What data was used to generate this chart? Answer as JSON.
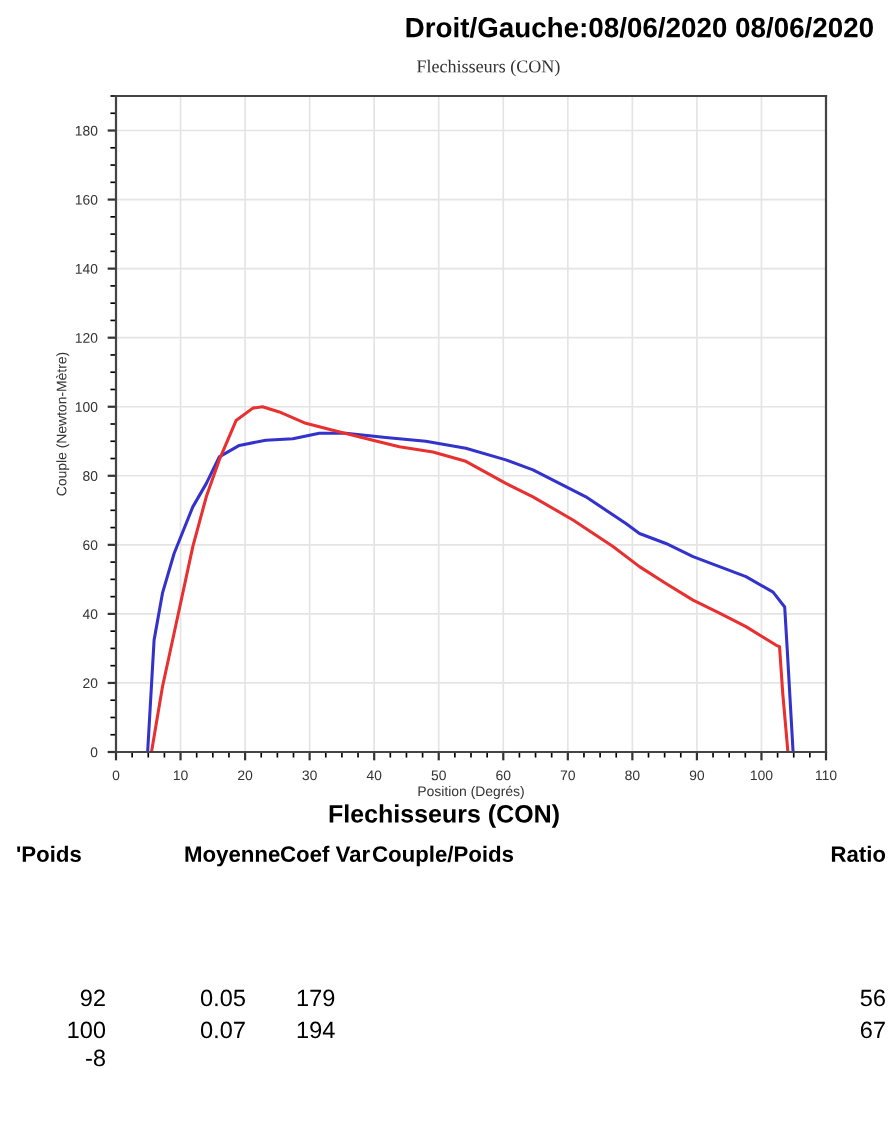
{
  "chart_data": {
    "type": "line",
    "title": "Droit/Gauche:08/06/2020 08/06/2020",
    "subtitle": "Flechisseurs (CON)",
    "xlabel": "Position (Degrés)",
    "ylabel": "Couple (Newton-Mètre)",
    "xlim": [
      0,
      110
    ],
    "xticks": [
      0,
      10,
      20,
      30,
      40,
      50,
      60,
      70,
      80,
      90,
      100,
      110
    ],
    "ylim": [
      0,
      190
    ],
    "yticks": [
      0,
      20,
      40,
      60,
      80,
      100,
      120,
      140,
      160,
      180
    ],
    "grid": true,
    "legend": false,
    "marker": "none",
    "line_style": "solid",
    "series": [
      {
        "color": "#3333cc",
        "x": [
          4.9,
          5.9,
          7.2,
          9,
          11.9,
          14,
          16,
          19.1,
          23.2,
          27.4,
          31.5,
          35.6,
          41.8,
          48,
          54.2,
          60.4,
          64.6,
          68.7,
          72.8,
          79,
          81.1,
          85.2,
          89.4,
          93.5,
          97.6,
          101.8,
          103.6,
          104,
          104.9
        ],
        "values": [
          0,
          32.4,
          46,
          57.5,
          71,
          77.8,
          85.5,
          88.8,
          90.3,
          90.7,
          92.3,
          92.3,
          91.1,
          90,
          88,
          84.6,
          81.7,
          77.8,
          73.9,
          66.2,
          63.3,
          60.4,
          56.6,
          53.7,
          50.8,
          46.3,
          42,
          29.5,
          0
        ]
      },
      {
        "color": "#e83030",
        "x": [
          5.5,
          7.2,
          9,
          11.9,
          14,
          16,
          18.6,
          21.2,
          22.7,
          25.3,
          29.4,
          33.6,
          39.8,
          43.9,
          49.1,
          54.2,
          60.4,
          64.6,
          70.8,
          77,
          81.1,
          85.2,
          89.4,
          93.5,
          97.6,
          102.3,
          102.8,
          103.3,
          104.1
        ],
        "values": [
          0,
          18.9,
          34.4,
          59.5,
          74,
          84.6,
          96,
          99.6,
          100,
          98.5,
          95.2,
          93.2,
          90.3,
          88.4,
          86.9,
          84.2,
          77.8,
          73.9,
          67.2,
          59.5,
          53.7,
          48.8,
          44,
          40.2,
          36.3,
          30.9,
          30.5,
          17,
          0
        ]
      }
    ],
    "annotations": [
      "Flechisseurs (CON)",
      "'Poids",
      "Moyenne",
      "Coef Var",
      "Couple/Poids",
      "Ratio",
      "92",
      "0.05",
      "179",
      "56",
      "100",
      "0.07",
      "194",
      "67",
      "-8"
    ]
  }
}
